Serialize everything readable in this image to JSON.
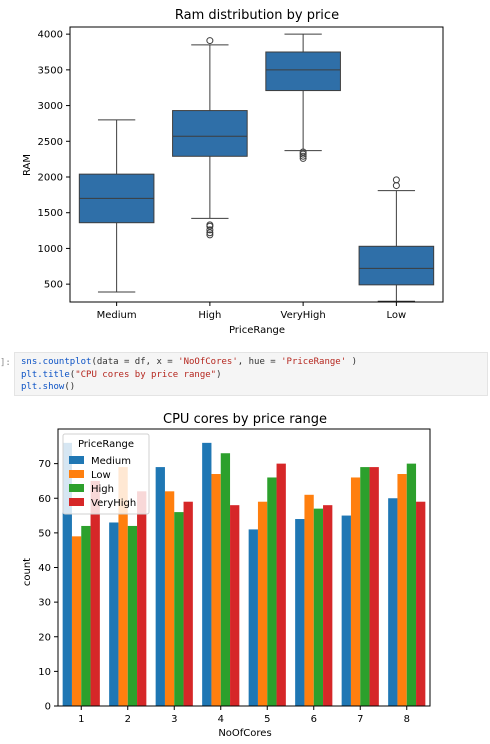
{
  "code_cell": {
    "prompt": "]:",
    "line1": {
      "fn": "sns.countplot",
      "pre": "(data = df, x = ",
      "s1": "'NoOfCores'",
      "mid": ", hue = ",
      "s2": "'PriceRange'",
      "post": " )"
    },
    "line2": {
      "fn": "plt.title",
      "pre": "(",
      "s1": "\"CPU cores by price range\"",
      "post": ")"
    },
    "line3": {
      "fn": "plt.show",
      "post": "()"
    }
  },
  "colors": {
    "box": "#2f6fa8",
    "medium": "#1f77b4",
    "low": "#ff7f0e",
    "high": "#2ca02c",
    "veryhigh": "#d62728"
  },
  "chart_data": [
    {
      "type": "box",
      "title": "Ram distribution by price",
      "xlabel": "PriceRange",
      "ylabel": "RAM",
      "categories": [
        "Medium",
        "High",
        "VeryHigh",
        "Low"
      ],
      "ylim": [
        250,
        4100
      ],
      "yticks": [
        500,
        1000,
        1500,
        2000,
        2500,
        3000,
        3500,
        4000
      ],
      "boxes": [
        {
          "whisker_low": 390,
          "q1": 1360,
          "median": 1700,
          "q3": 2040,
          "whisker_high": 2800,
          "outliers": []
        },
        {
          "whisker_low": 1420,
          "q1": 2290,
          "median": 2570,
          "q3": 2930,
          "whisker_high": 3850,
          "outliers": [
            1190,
            1220,
            1260,
            1310,
            1330,
            3910
          ]
        },
        {
          "whisker_low": 2370,
          "q1": 3210,
          "median": 3500,
          "q3": 3750,
          "whisker_high": 4000,
          "outliers": [
            2260,
            2290,
            2320,
            2350
          ]
        },
        {
          "whisker_low": 260,
          "q1": 490,
          "median": 720,
          "q3": 1030,
          "whisker_high": 1810,
          "outliers": [
            1880,
            1960
          ]
        }
      ]
    },
    {
      "type": "bar",
      "title": "CPU cores by price range",
      "xlabel": "NoOfCores",
      "ylabel": "count",
      "categories": [
        "1",
        "2",
        "3",
        "4",
        "5",
        "6",
        "7",
        "8"
      ],
      "ylim": [
        0,
        80
      ],
      "yticks": [
        0,
        10,
        20,
        30,
        40,
        50,
        60,
        70
      ],
      "legend_title": "PriceRange",
      "legend_placement": "upper-left",
      "series": [
        {
          "name": "Medium",
          "color_key": "medium",
          "values": [
            76,
            53,
            69,
            76,
            51,
            54,
            55,
            60
          ]
        },
        {
          "name": "Low",
          "color_key": "low",
          "values": [
            49,
            69,
            62,
            67,
            59,
            61,
            66,
            67
          ]
        },
        {
          "name": "High",
          "color_key": "high",
          "values": [
            52,
            52,
            56,
            73,
            66,
            57,
            69,
            70
          ]
        },
        {
          "name": "VeryHigh",
          "color_key": "veryhigh",
          "values": [
            65,
            62,
            59,
            58,
            70,
            58,
            69,
            59
          ]
        }
      ]
    }
  ]
}
